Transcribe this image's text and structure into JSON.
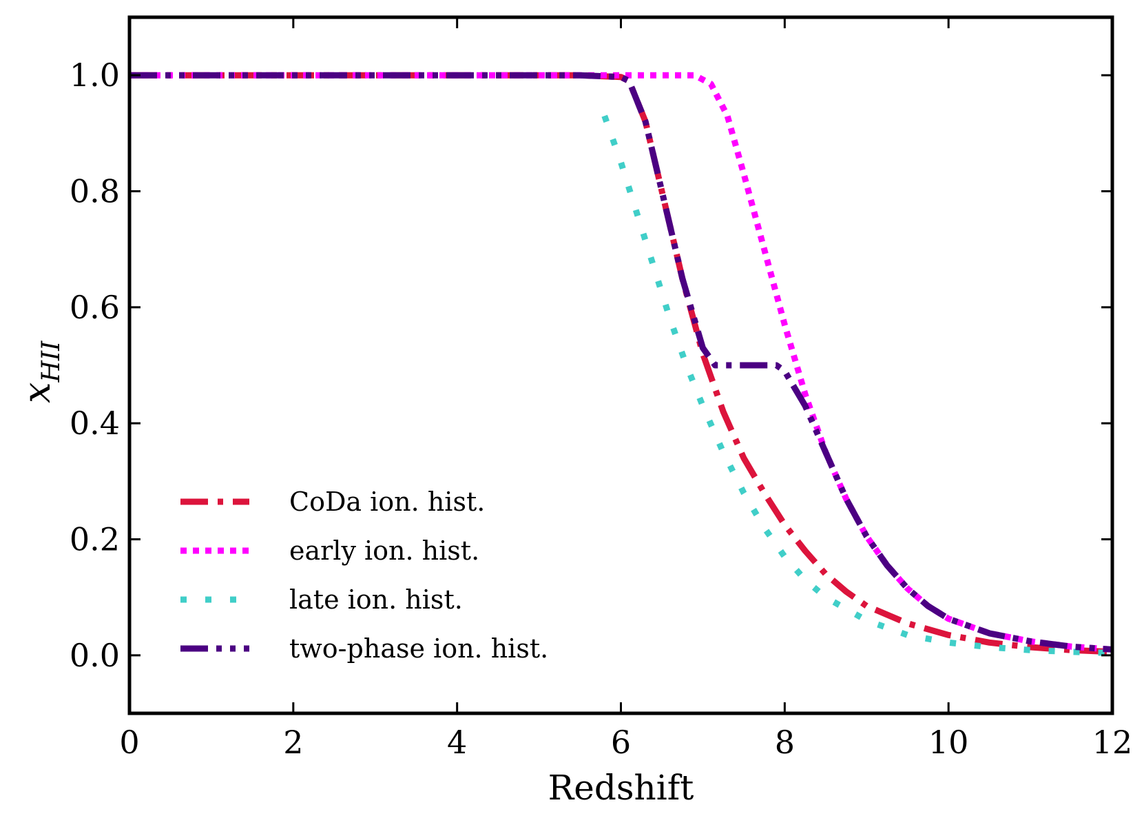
{
  "chart_data": {
    "type": "line",
    "title": "",
    "xlabel": "Redshift",
    "ylabel": {
      "main": "x",
      "subscript": "HII"
    },
    "xlim": [
      0,
      12
    ],
    "ylim": [
      -0.1,
      1.1
    ],
    "xticks": [
      0,
      2,
      4,
      6,
      8,
      10,
      12
    ],
    "yticks": [
      0.0,
      0.2,
      0.4,
      0.6,
      0.8,
      1.0
    ],
    "xtick_labels": [
      "0",
      "2",
      "4",
      "6",
      "8",
      "10",
      "12"
    ],
    "ytick_labels": [
      "0.0",
      "0.2",
      "0.4",
      "0.6",
      "0.8",
      "1.0"
    ],
    "grid": false,
    "legend_position": "bottom-left",
    "series": [
      {
        "name": "CoDa ion. hist.",
        "color": "#dc143c",
        "style": "dashdot",
        "x": [
          0,
          1,
          2,
          3,
          4,
          5,
          5.5,
          6.0,
          6.1,
          6.3,
          6.5,
          6.75,
          7.0,
          7.25,
          7.5,
          7.75,
          8.0,
          8.25,
          8.5,
          8.75,
          9.0,
          9.5,
          10.0,
          10.5,
          11.0,
          11.5,
          12.0
        ],
        "y": [
          1.0,
          1.0,
          1.0,
          1.0,
          1.0,
          1.0,
          1.0,
          0.997,
          0.99,
          0.92,
          0.8,
          0.65,
          0.52,
          0.42,
          0.34,
          0.28,
          0.225,
          0.18,
          0.14,
          0.11,
          0.085,
          0.055,
          0.035,
          0.022,
          0.014,
          0.009,
          0.006
        ]
      },
      {
        "name": "early ion. hist.",
        "color": "#ff00ff",
        "style": "dotted",
        "x": [
          0,
          1,
          2,
          3,
          4,
          5,
          6,
          6.5,
          6.9,
          7.1,
          7.3,
          7.5,
          7.75,
          8.0,
          8.25,
          8.5,
          8.75,
          9.0,
          9.25,
          9.5,
          9.75,
          10.0,
          10.5,
          11.0,
          11.5,
          12.0
        ],
        "y": [
          1.0,
          1.0,
          1.0,
          1.0,
          1.0,
          1.0,
          1.0,
          1.0,
          1.0,
          0.985,
          0.93,
          0.83,
          0.7,
          0.57,
          0.45,
          0.35,
          0.27,
          0.205,
          0.155,
          0.115,
          0.085,
          0.063,
          0.038,
          0.024,
          0.015,
          0.01
        ]
      },
      {
        "name": "late ion. hist.",
        "color": "#40cec8",
        "style": "sparse-dotted",
        "x": [
          5.8,
          6.0,
          6.2,
          6.4,
          6.6,
          6.8,
          7.0,
          7.25,
          7.5,
          7.75,
          8.0,
          8.25,
          8.5,
          9.0,
          9.5,
          10.0,
          10.5,
          11.0,
          11.5,
          12.0
        ],
        "y": [
          0.93,
          0.85,
          0.76,
          0.67,
          0.58,
          0.5,
          0.43,
          0.35,
          0.28,
          0.22,
          0.17,
          0.13,
          0.1,
          0.06,
          0.035,
          0.022,
          0.014,
          0.009,
          0.006,
          0.004
        ]
      },
      {
        "name": "two-phase ion. hist.",
        "color": "#4b0082",
        "style": "dashdotdot",
        "x": [
          0,
          1,
          2,
          3,
          4,
          5,
          5.5,
          6.0,
          6.1,
          6.3,
          6.5,
          6.75,
          7.0,
          7.15,
          7.5,
          7.9,
          8.0,
          8.25,
          8.5,
          8.75,
          9.0,
          9.25,
          9.5,
          9.75,
          10.0,
          10.5,
          11.0,
          11.5,
          12.0
        ],
        "y": [
          1.0,
          1.0,
          1.0,
          1.0,
          1.0,
          1.0,
          1.0,
          0.997,
          0.99,
          0.92,
          0.8,
          0.65,
          0.53,
          0.5,
          0.5,
          0.5,
          0.49,
          0.43,
          0.35,
          0.27,
          0.205,
          0.155,
          0.115,
          0.085,
          0.063,
          0.038,
          0.024,
          0.015,
          0.01
        ]
      }
    ]
  }
}
